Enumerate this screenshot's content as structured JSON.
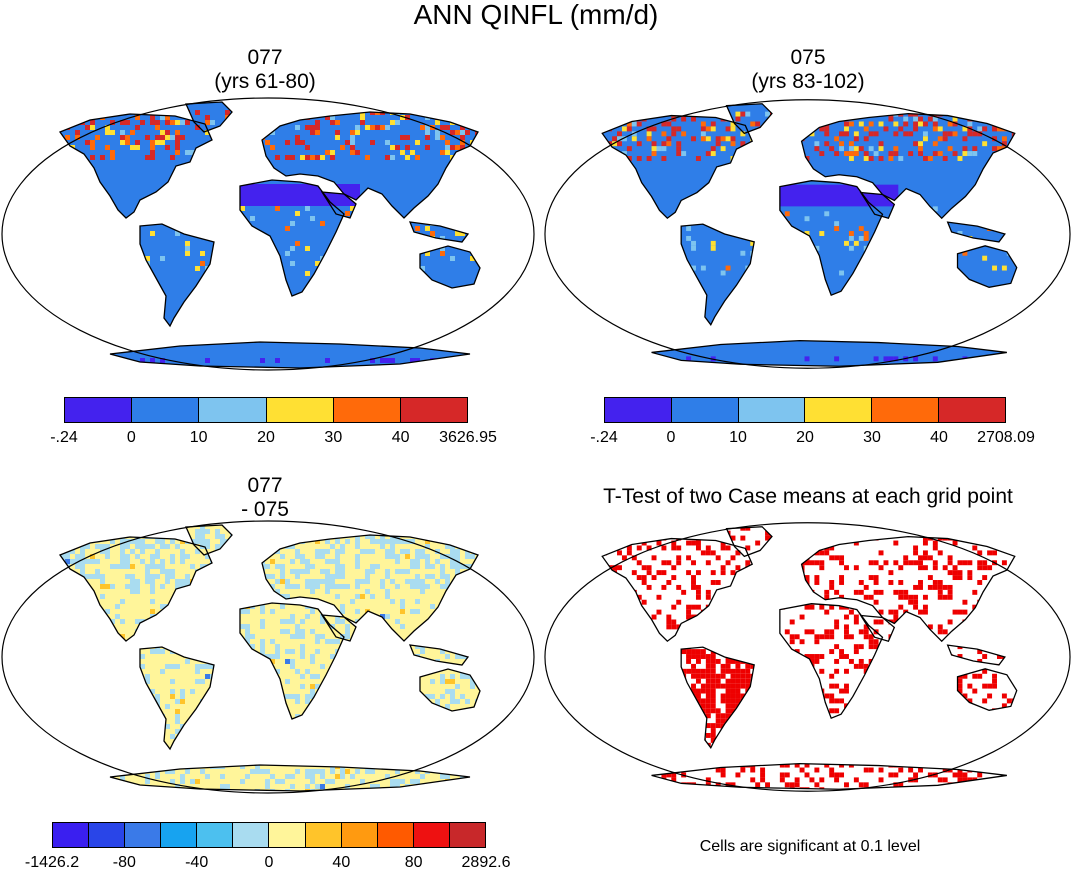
{
  "figure": {
    "title": "ANN QINFL (mm/d)"
  },
  "panels": {
    "case1": {
      "title_line1": "077",
      "title_line2": "(yrs 61-80)",
      "colorbar": {
        "colors": [
          "#4422ee",
          "#2f7ee8",
          "#7ec4ef",
          "#ffe033",
          "#ff6a0a",
          "#d62828"
        ],
        "labels": [
          "-.24",
          "0",
          "10",
          "20",
          "30",
          "40",
          "3626.95"
        ]
      }
    },
    "case2": {
      "title_line1": "075",
      "title_line2": "(yrs 83-102)",
      "colorbar": {
        "colors": [
          "#4422ee",
          "#2f7ee8",
          "#7ec4ef",
          "#ffe033",
          "#ff6a0a",
          "#d62828"
        ],
        "labels": [
          "-.24",
          "0",
          "10",
          "20",
          "30",
          "40",
          "2708.09"
        ]
      }
    },
    "difference": {
      "title_line1": "077",
      "title_line2": "- 075",
      "colorbar": {
        "colors": [
          "#3a1ff0",
          "#2945e8",
          "#3a7ae8",
          "#17a3f0",
          "#4cc0ef",
          "#a9dcf0",
          "#fff59a",
          "#ffc42a",
          "#ff9a10",
          "#ff5a00",
          "#ee1111",
          "#c8282a"
        ],
        "labels": [
          "-1426.2",
          "-80",
          "-40",
          "0",
          "40",
          "80",
          "2892.6"
        ]
      }
    },
    "ttest": {
      "title": "T-Test of two Case means at each grid point",
      "note": "Cells are significant at 0.1 level",
      "significant_color": "#ee0000"
    }
  }
}
